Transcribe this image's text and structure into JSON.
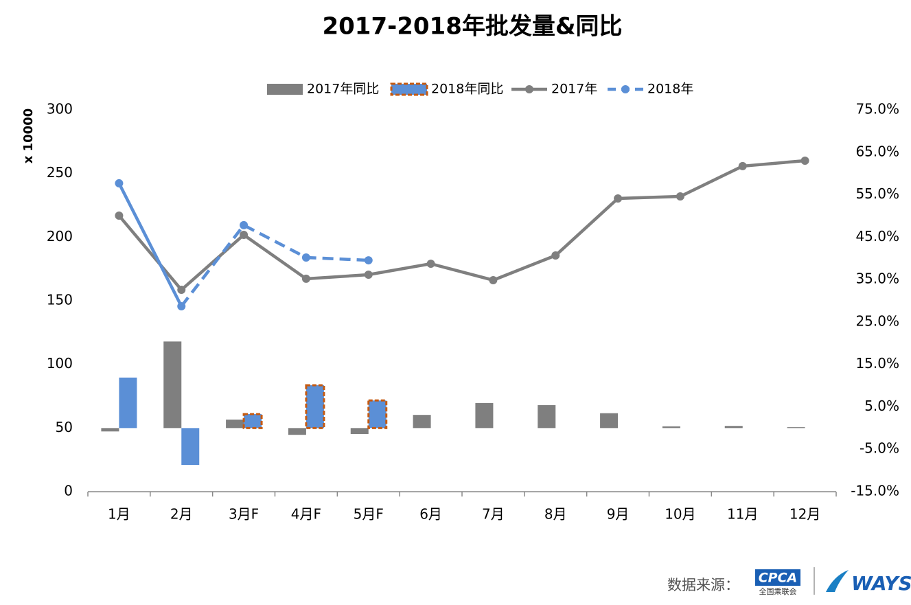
{
  "chart_data": {
    "type": "combo",
    "title": "2017-2018年批发量&同比",
    "y_label": "x 10000",
    "categories": [
      "1月",
      "2月",
      "3月F",
      "4月F",
      "5月F",
      "6月",
      "7月",
      "8月",
      "9月",
      "10月",
      "11月",
      "12月"
    ],
    "ylim": [
      0,
      300
    ],
    "yticks": [
      0,
      50,
      100,
      150,
      200,
      250,
      300
    ],
    "y2lim": [
      -15,
      75
    ],
    "y2ticks": [
      {
        "value": 75,
        "label": "75.0%"
      },
      {
        "value": 65,
        "label": "65.0%"
      },
      {
        "value": 55,
        "label": "55.0%"
      },
      {
        "value": 45,
        "label": "45.0%"
      },
      {
        "value": 35,
        "label": "35.0%"
      },
      {
        "value": 25,
        "label": "25.0%"
      },
      {
        "value": 15,
        "label": "15.0%"
      },
      {
        "value": 5,
        "label": "5.0%"
      },
      {
        "value": -5,
        "label": "-5.0%"
      },
      {
        "value": -15,
        "label": "-15.0%"
      }
    ],
    "series": [
      {
        "name": "2017年同比",
        "kind": "bar",
        "axis": "y2",
        "color": "#7f7f7f",
        "values": [
          -0.8,
          20.4,
          2.0,
          -1.6,
          -1.4,
          3.1,
          5.9,
          5.4,
          3.5,
          0.4,
          0.5,
          0.2
        ]
      },
      {
        "name": "2018年同比",
        "kind": "bar",
        "axis": "y2",
        "color": "#5b8fd6",
        "forecast_color": "#c55a11",
        "forecast_start": 2,
        "values": [
          11.9,
          -8.7,
          3.3,
          10.1,
          6.5,
          null,
          null,
          null,
          null,
          null,
          null,
          null
        ]
      },
      {
        "name": "2017年",
        "kind": "line",
        "color": "#7f7f7f",
        "values": [
          216.9,
          158.6,
          201.8,
          167.3,
          170.5,
          179.1,
          166.2,
          185.6,
          230.4,
          232.0,
          255.8,
          260.1
        ]
      },
      {
        "name": "2018年",
        "kind": "line",
        "color": "#5b8fd6",
        "forecast_start": 2,
        "values": [
          242.3,
          145.7,
          209.4,
          184.0,
          181.8,
          null,
          null,
          null,
          null,
          null,
          null,
          null
        ]
      }
    ],
    "footer": {
      "source": "数据来源：",
      "logo1": "CPCA",
      "logo1_sub": "全国乘联会",
      "logo2": "WAYS"
    }
  }
}
